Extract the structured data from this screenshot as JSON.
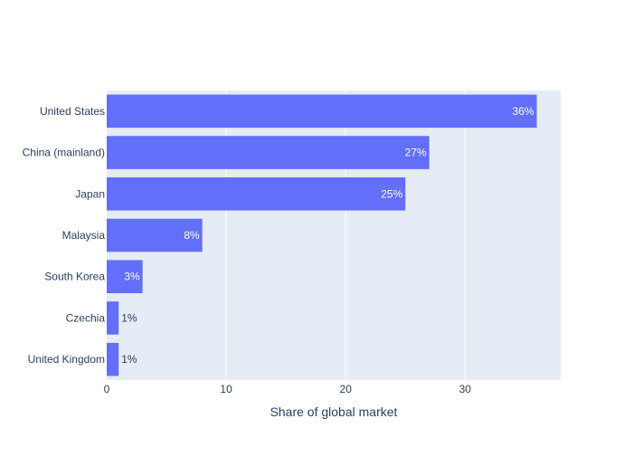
{
  "chart_data": {
    "type": "bar",
    "orientation": "horizontal",
    "categories": [
      "United States",
      "China (mainland)",
      "Japan",
      "Malaysia",
      "South Korea",
      "Czechia",
      "United Kingdom"
    ],
    "values": [
      36,
      27,
      25,
      8,
      3,
      1,
      1
    ],
    "data_labels": [
      "36%",
      "27%",
      "25%",
      "8%",
      "3%",
      "1%",
      "1%"
    ],
    "xlabel": "Share of global market",
    "xlim": [
      0,
      38
    ],
    "xticks": [
      0,
      10,
      20,
      30
    ],
    "grid": true,
    "colors": {
      "bar": "#636efa",
      "plot_background": "#e5ecf6",
      "grid": "#ffffff",
      "text": "#2a3f5f",
      "label_inside": "#ffffff"
    }
  }
}
